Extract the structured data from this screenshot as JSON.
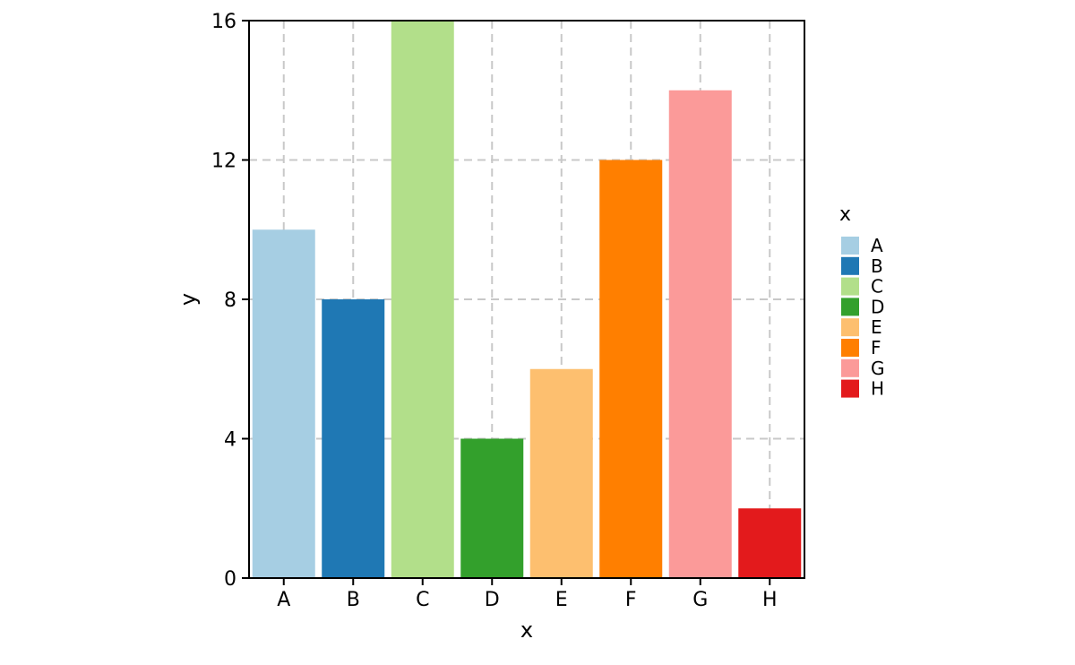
{
  "chart_data": {
    "type": "bar",
    "categories": [
      "A",
      "B",
      "C",
      "D",
      "E",
      "F",
      "G",
      "H"
    ],
    "values": [
      10,
      8,
      16,
      4,
      6,
      12,
      14,
      2
    ],
    "colors": [
      "#a6cee3",
      "#1f78b4",
      "#b2df8a",
      "#33a02c",
      "#fdbf6f",
      "#ff7f00",
      "#fb9a99",
      "#e31a1c"
    ],
    "xlabel": "x",
    "ylabel": "y",
    "ylim": [
      0,
      16
    ],
    "yticks": [
      0,
      4,
      8,
      12,
      16
    ],
    "grid": true,
    "legend": {
      "title": "x",
      "placement": "right",
      "entries": [
        "A",
        "B",
        "C",
        "D",
        "E",
        "F",
        "G",
        "H"
      ]
    }
  }
}
